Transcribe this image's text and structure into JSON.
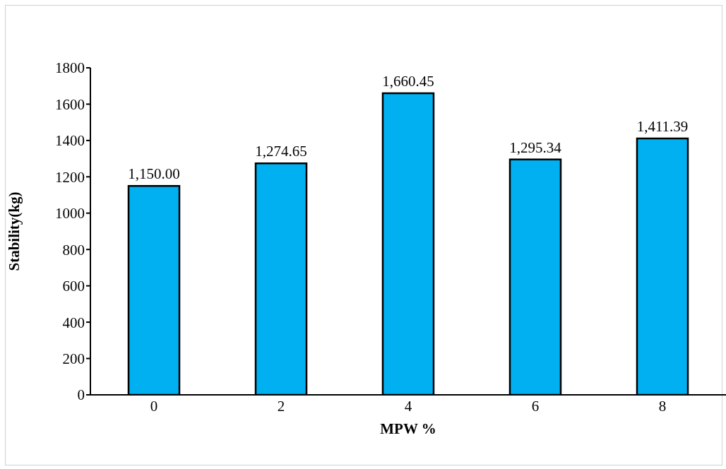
{
  "chart_data": {
    "type": "bar",
    "xlabel": "MPW %",
    "ylabel": "Stability(kg)",
    "categories": [
      "0",
      "2",
      "4",
      "6",
      "8"
    ],
    "values": [
      1150.0,
      1274.65,
      1660.45,
      1295.34,
      1411.39
    ],
    "value_labels": [
      "1,150.00",
      "1,274.65",
      "1,660.45",
      "1,295.34",
      "1,411.39"
    ],
    "color": "#00b0f0",
    "ylim": [
      0,
      1800
    ],
    "yticks": [
      0,
      200,
      400,
      600,
      800,
      1000,
      1200,
      1400,
      1600,
      1800
    ],
    "grid": false,
    "legend": false
  }
}
